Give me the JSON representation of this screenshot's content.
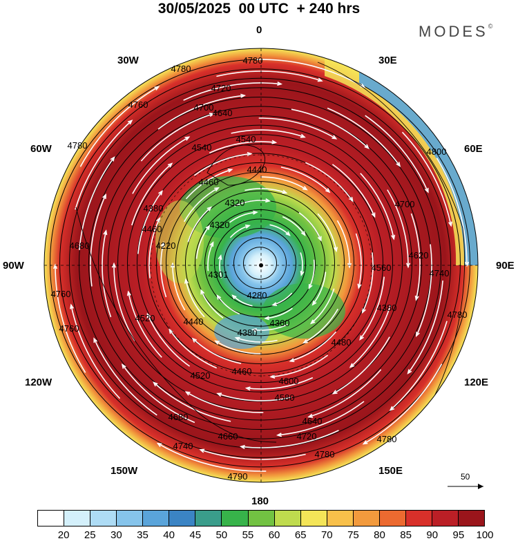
{
  "header": {
    "title": "30/05/2025  00 UTC  + 240 hrs",
    "brand": "MODES",
    "brand_mark": "©"
  },
  "map": {
    "projection": "north-polar-stereographic",
    "longitude_labels": {
      "lon_0": "0",
      "lon_30e": "30E",
      "lon_60e": "60E",
      "lon_90e": "90E",
      "lon_120e": "120E",
      "lon_150e": "150E",
      "lon_180": "180",
      "lon_150w": "150W",
      "lon_120w": "120W",
      "lon_90w": "90W",
      "lon_60w": "60W",
      "lon_30w": "30W"
    },
    "geopotential_contour_labels": [
      "4780",
      "4780",
      "4760",
      "4720",
      "4700",
      "4640",
      "4780",
      "4540",
      "4540",
      "4440",
      "4460",
      "4320",
      "4320",
      "4220",
      "4460",
      "4380",
      "4301",
      "4280",
      "4380",
      "4360",
      "4440",
      "4480",
      "4520",
      "4460",
      "4520",
      "4680",
      "4760",
      "4680",
      "4580",
      "4660",
      "4740",
      "4780",
      "4790",
      "4720",
      "4780",
      "4640",
      "4800",
      "4740",
      "4620",
      "4700",
      "4780",
      "4560",
      "4380",
      "4600",
      "4760"
    ],
    "vector_reference": {
      "label": "50"
    },
    "colors": {
      "land_outline": "#000000",
      "contour": "#000000",
      "streamline": "#ffffff"
    }
  },
  "colorbar": {
    "ticks": [
      "20",
      "25",
      "30",
      "35",
      "40",
      "45",
      "50",
      "55",
      "60",
      "65",
      "70",
      "75",
      "80",
      "85",
      "90",
      "95",
      "100"
    ],
    "colors": [
      "#ffffff",
      "#d4f0fb",
      "#aedcf5",
      "#86c4eb",
      "#5aa4da",
      "#3b84c4",
      "#3a9d8b",
      "#37b34a",
      "#72c242",
      "#bfdb4e",
      "#f4e558",
      "#f8c04a",
      "#f29a3d",
      "#ec6a30",
      "#d8302a",
      "#bb1f26",
      "#9a151b"
    ]
  }
}
